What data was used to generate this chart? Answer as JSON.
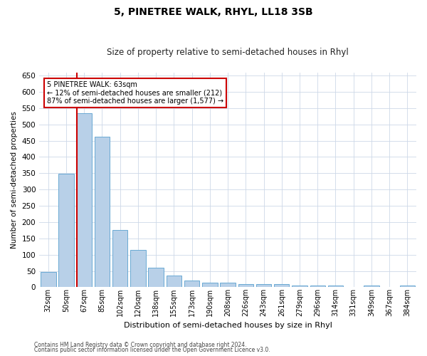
{
  "title": "5, PINETREE WALK, RHYL, LL18 3SB",
  "subtitle": "Size of property relative to semi-detached houses in Rhyl",
  "xlabel": "Distribution of semi-detached houses by size in Rhyl",
  "ylabel": "Number of semi-detached properties",
  "categories": [
    "32sqm",
    "50sqm",
    "67sqm",
    "85sqm",
    "102sqm",
    "120sqm",
    "138sqm",
    "155sqm",
    "173sqm",
    "190sqm",
    "208sqm",
    "226sqm",
    "243sqm",
    "261sqm",
    "279sqm",
    "296sqm",
    "314sqm",
    "331sqm",
    "349sqm",
    "367sqm",
    "384sqm"
  ],
  "values": [
    46,
    348,
    535,
    463,
    175,
    115,
    59,
    35,
    20,
    15,
    15,
    10,
    10,
    9,
    6,
    5,
    5,
    0,
    5,
    0,
    5
  ],
  "bar_color": "#b8d0e8",
  "bar_edge_color": "#6aaad4",
  "red_line_index": 2,
  "annotation_line1": "5 PINETREE WALK: 63sqm",
  "annotation_line2": "← 12% of semi-detached houses are smaller (212)",
  "annotation_line3": "87% of semi-detached houses are larger (1,577) →",
  "annotation_box_color": "#ffffff",
  "annotation_box_edge_color": "#cc0000",
  "ylim": [
    0,
    660
  ],
  "yticks": [
    0,
    50,
    100,
    150,
    200,
    250,
    300,
    350,
    400,
    450,
    500,
    550,
    600,
    650
  ],
  "red_line_color": "#cc0000",
  "grid_color": "#cdd8e8",
  "background_color": "#ffffff",
  "footer_line1": "Contains HM Land Registry data © Crown copyright and database right 2024.",
  "footer_line2": "Contains public sector information licensed under the Open Government Licence v3.0."
}
